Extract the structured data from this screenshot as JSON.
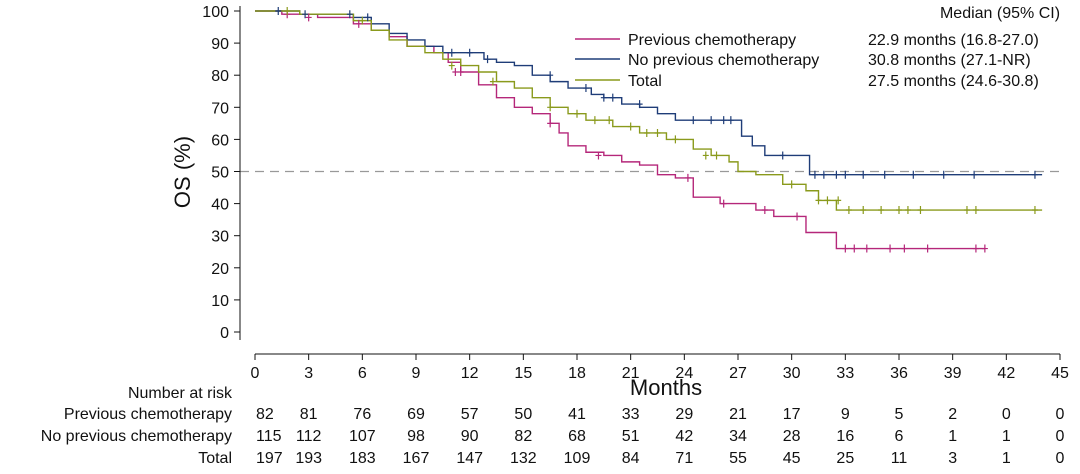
{
  "chart_data": {
    "type": "line",
    "subtype": "kaplan-meier",
    "xlabel": "Months",
    "ylabel": "OS (%)",
    "xlim": [
      0,
      45
    ],
    "ylim": [
      0,
      100
    ],
    "xticks": [
      0,
      3,
      6,
      9,
      12,
      15,
      18,
      21,
      24,
      27,
      30,
      33,
      36,
      39,
      42,
      45
    ],
    "yticks": [
      0,
      10,
      20,
      30,
      40,
      50,
      60,
      70,
      80,
      90,
      100
    ],
    "reference_line": {
      "y": 50,
      "style": "dashed"
    },
    "legend": {
      "placement": "top-right",
      "header": "Median (95% CI)",
      "entries": [
        {
          "label": "Previous chemotherapy",
          "median": "22.9 months (16.8-27.0)"
        },
        {
          "label": "No previous chemotherapy",
          "median": "30.8 months (27.1-NR)"
        },
        {
          "label": "Total",
          "median": "27.5 months (24.6-30.8)"
        }
      ]
    },
    "series": [
      {
        "name": "Previous chemotherapy",
        "color": "#b5277a",
        "steps": [
          [
            0,
            100
          ],
          [
            1.5,
            99
          ],
          [
            3.5,
            98
          ],
          [
            5.5,
            96
          ],
          [
            6.5,
            94
          ],
          [
            7.5,
            92
          ],
          [
            8.5,
            89
          ],
          [
            10,
            87
          ],
          [
            10.8,
            84
          ],
          [
            11.5,
            81
          ],
          [
            12.5,
            77
          ],
          [
            13.5,
            73
          ],
          [
            14.5,
            70
          ],
          [
            15.5,
            68
          ],
          [
            16.5,
            65
          ],
          [
            17,
            62
          ],
          [
            17.5,
            58
          ],
          [
            18.5,
            56
          ],
          [
            19.5,
            55
          ],
          [
            20.5,
            53
          ],
          [
            21.5,
            52
          ],
          [
            22.5,
            49
          ],
          [
            23.5,
            48
          ],
          [
            24.5,
            42
          ],
          [
            26,
            40
          ],
          [
            28,
            38
          ],
          [
            29,
            36
          ],
          [
            30.8,
            31
          ],
          [
            32.5,
            26
          ],
          [
            40.8,
            26
          ]
        ],
        "censor": [
          [
            1.8,
            99
          ],
          [
            3,
            98
          ],
          [
            5.8,
            96
          ],
          [
            11.2,
            81
          ],
          [
            11.5,
            81
          ],
          [
            16.5,
            65
          ],
          [
            19.2,
            55
          ],
          [
            24.2,
            48
          ],
          [
            26.2,
            40
          ],
          [
            28.5,
            38
          ],
          [
            30.3,
            36
          ],
          [
            33,
            26
          ],
          [
            33.5,
            26
          ],
          [
            34.2,
            26
          ],
          [
            35.5,
            26
          ],
          [
            36.3,
            26
          ],
          [
            37.6,
            26
          ],
          [
            40.3,
            26
          ],
          [
            40.8,
            26
          ]
        ]
      },
      {
        "name": "No previous chemotherapy",
        "color": "#1f3d78",
        "steps": [
          [
            0,
            100
          ],
          [
            2.5,
            99
          ],
          [
            5.5,
            98
          ],
          [
            6.5,
            96
          ],
          [
            7.5,
            93
          ],
          [
            8.5,
            91
          ],
          [
            9.5,
            89
          ],
          [
            10.5,
            87
          ],
          [
            12.8,
            85
          ],
          [
            13.5,
            84
          ],
          [
            14.5,
            83
          ],
          [
            15.5,
            80
          ],
          [
            16.5,
            78
          ],
          [
            17.5,
            76
          ],
          [
            18.8,
            74
          ],
          [
            19.5,
            73
          ],
          [
            20.5,
            71
          ],
          [
            21.5,
            70
          ],
          [
            22.5,
            68
          ],
          [
            23.5,
            66
          ],
          [
            27.2,
            61
          ],
          [
            27.8,
            58
          ],
          [
            28.5,
            55
          ],
          [
            31,
            49
          ],
          [
            44,
            49
          ]
        ],
        "censor": [
          [
            1.3,
            100
          ],
          [
            2.8,
            99
          ],
          [
            5.3,
            99
          ],
          [
            6.3,
            98
          ],
          [
            11,
            87
          ],
          [
            12,
            87
          ],
          [
            13,
            85
          ],
          [
            16.5,
            80
          ],
          [
            18.5,
            76
          ],
          [
            19.5,
            73
          ],
          [
            20,
            73
          ],
          [
            21.5,
            71
          ],
          [
            24.5,
            66
          ],
          [
            25.5,
            66
          ],
          [
            26.2,
            66
          ],
          [
            26.6,
            66
          ],
          [
            29.5,
            55
          ],
          [
            31.3,
            49
          ],
          [
            31.8,
            49
          ],
          [
            32.5,
            49
          ],
          [
            33,
            49
          ],
          [
            34,
            49
          ],
          [
            35.2,
            49
          ],
          [
            36.8,
            49
          ],
          [
            38.5,
            49
          ],
          [
            40.2,
            49
          ],
          [
            43.6,
            49
          ]
        ]
      },
      {
        "name": "Total",
        "color": "#8a9a1c",
        "steps": [
          [
            0,
            100
          ],
          [
            2.5,
            99
          ],
          [
            5.5,
            97
          ],
          [
            6.5,
            94
          ],
          [
            7.5,
            91
          ],
          [
            8.5,
            89
          ],
          [
            9.5,
            87
          ],
          [
            10.5,
            85
          ],
          [
            11.5,
            83
          ],
          [
            12.5,
            81
          ],
          [
            13.5,
            78
          ],
          [
            14.5,
            76
          ],
          [
            15.5,
            73
          ],
          [
            16.5,
            70
          ],
          [
            17.5,
            68
          ],
          [
            18.5,
            66
          ],
          [
            20,
            64
          ],
          [
            21.5,
            62
          ],
          [
            23,
            60
          ],
          [
            24.5,
            57
          ],
          [
            25.5,
            55
          ],
          [
            26.5,
            53
          ],
          [
            27,
            50
          ],
          [
            28,
            49
          ],
          [
            29.5,
            46
          ],
          [
            30.8,
            44
          ],
          [
            31.5,
            41
          ],
          [
            32.5,
            38
          ],
          [
            44,
            38
          ]
        ],
        "censor": [
          [
            1.8,
            100
          ],
          [
            6,
            97
          ],
          [
            11,
            83
          ],
          [
            13.3,
            78
          ],
          [
            16.5,
            70
          ],
          [
            18,
            68
          ],
          [
            19,
            66
          ],
          [
            19.8,
            66
          ],
          [
            21,
            64
          ],
          [
            21.9,
            62
          ],
          [
            22.5,
            62
          ],
          [
            23.5,
            60
          ],
          [
            25.2,
            55
          ],
          [
            25.8,
            55
          ],
          [
            30,
            46
          ],
          [
            31.5,
            41
          ],
          [
            32,
            41
          ],
          [
            32.6,
            41
          ],
          [
            33.2,
            38
          ],
          [
            34,
            38
          ],
          [
            35,
            38
          ],
          [
            36,
            38
          ],
          [
            36.5,
            38
          ],
          [
            37.2,
            38
          ],
          [
            39.8,
            38
          ],
          [
            40.3,
            38
          ],
          [
            43.6,
            38
          ]
        ]
      }
    ],
    "risk_table": {
      "title": "Number at risk",
      "times": [
        0,
        3,
        6,
        9,
        12,
        15,
        18,
        21,
        24,
        27,
        30,
        33,
        36,
        39,
        42,
        45
      ],
      "rows": [
        {
          "label": "Previous chemotherapy",
          "values": [
            82,
            81,
            76,
            69,
            57,
            50,
            41,
            33,
            29,
            21,
            17,
            9,
            5,
            2,
            0,
            0
          ]
        },
        {
          "label": "No previous chemotherapy",
          "values": [
            115,
            112,
            107,
            98,
            90,
            82,
            68,
            51,
            42,
            34,
            28,
            16,
            6,
            1,
            1,
            0
          ]
        },
        {
          "label": "Total",
          "values": [
            197,
            193,
            183,
            167,
            147,
            132,
            109,
            84,
            71,
            55,
            45,
            25,
            11,
            3,
            1,
            0
          ]
        }
      ]
    }
  }
}
